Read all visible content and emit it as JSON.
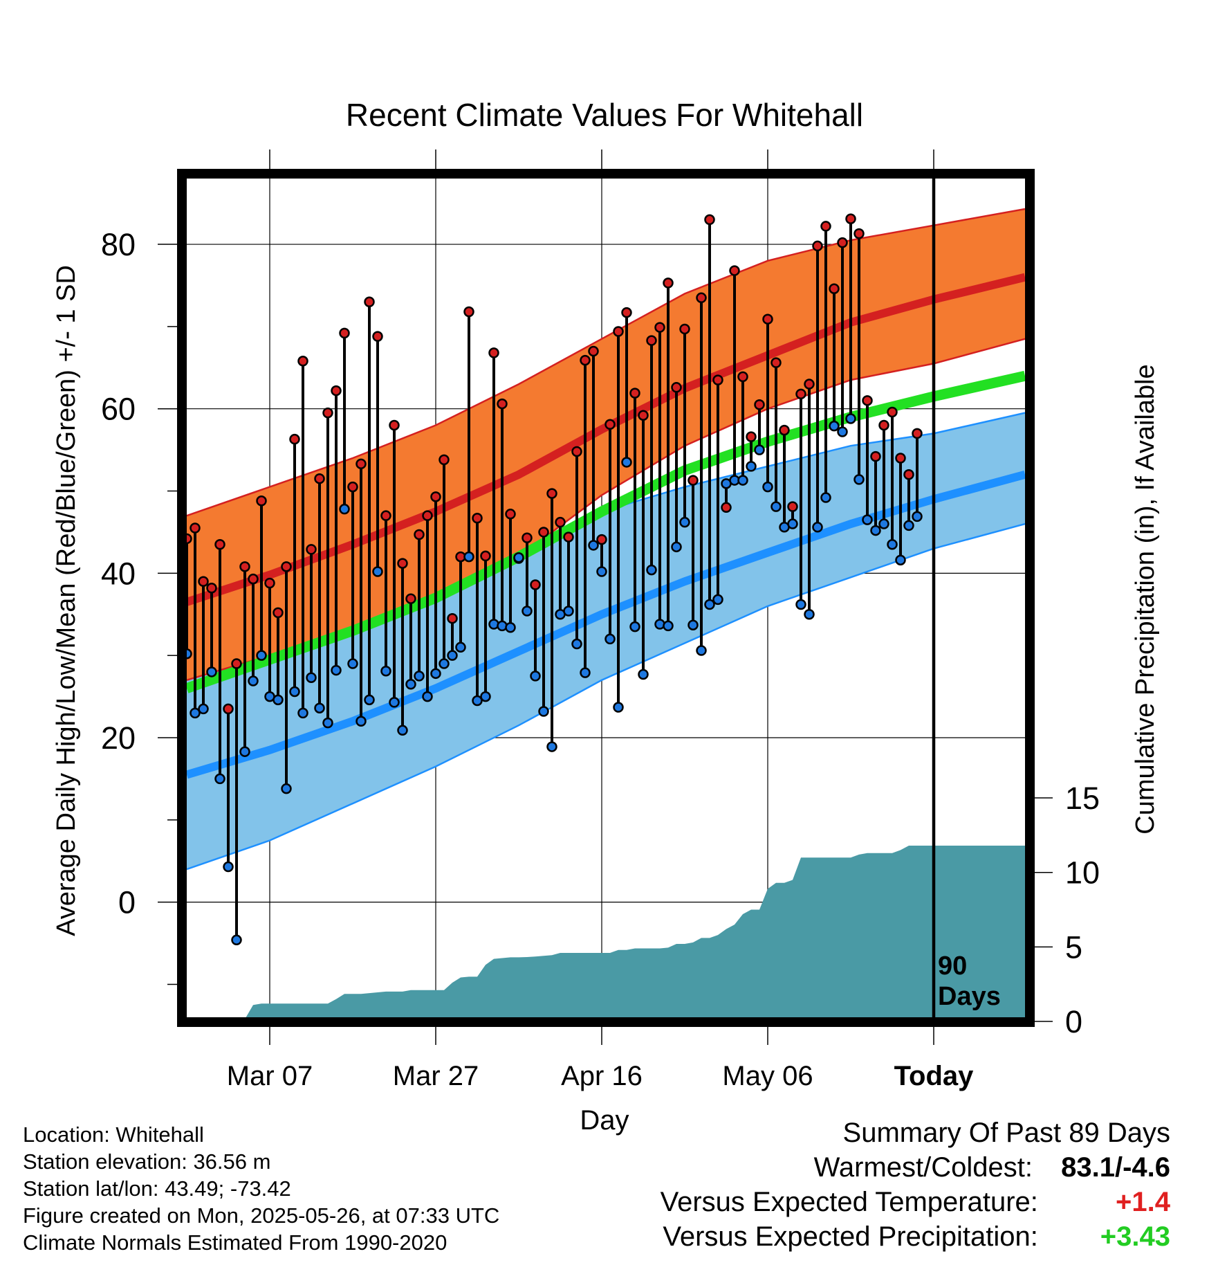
{
  "chart_data": {
    "type": "line",
    "title": "Recent Climate Values For Whitehall",
    "xlabel": "Day",
    "ylabel": "Average Daily High/Low/Mean (Red/Blue/Green) +/- 1 SD",
    "y2label": "Cumulative Precipitation (in), If Available",
    "ylim": [
      -14,
      88
    ],
    "yticks": [
      0,
      20,
      40,
      60,
      80
    ],
    "y2lim": [
      0,
      17
    ],
    "y2ticks": [
      0,
      5,
      10,
      15
    ],
    "x_day_range": [
      1,
      102
    ],
    "x_tick_days": [
      11,
      31,
      51,
      71,
      91
    ],
    "x_tick_labels": [
      "Mar 07",
      "Mar 27",
      "Apr 16",
      "May 06",
      "Today"
    ],
    "today_day": 91,
    "today_label": [
      "90",
      "Days"
    ],
    "grid": true,
    "normals": {
      "x": [
        1,
        11,
        21,
        31,
        41,
        51,
        61,
        71,
        81,
        91,
        102
      ],
      "high_mean": [
        36.5,
        39.8,
        43.5,
        47.5,
        52.0,
        57.5,
        62.5,
        66.5,
        70.5,
        73.3,
        76.0
      ],
      "high_upper": [
        47.0,
        50.5,
        54.0,
        58.0,
        63.0,
        68.5,
        74.0,
        78.0,
        80.5,
        82.3,
        84.3
      ],
      "high_lower": [
        27.0,
        30.0,
        33.5,
        37.5,
        42.0,
        49.5,
        55.5,
        60.0,
        63.5,
        65.5,
        68.5
      ],
      "mean": [
        26.0,
        29.5,
        33.0,
        37.0,
        42.0,
        47.5,
        52.5,
        56.0,
        59.0,
        61.5,
        64.0
      ],
      "low_mean": [
        15.5,
        18.5,
        22.0,
        26.0,
        30.5,
        35.0,
        39.0,
        42.5,
        46.0,
        49.0,
        52.0
      ],
      "low_upper": [
        27.5,
        31.0,
        35.0,
        38.5,
        43.0,
        47.5,
        50.5,
        53.0,
        55.5,
        57.0,
        59.5
      ],
      "low_lower": [
        4.0,
        7.5,
        12.0,
        16.5,
        21.5,
        27.0,
        31.5,
        36.0,
        39.5,
        43.0,
        46.0
      ]
    },
    "series": [
      {
        "name": "High",
        "x": [
          1,
          2,
          3,
          4,
          5,
          6,
          7,
          8,
          9,
          10,
          11,
          12,
          13,
          14,
          15,
          16,
          17,
          18,
          19,
          20,
          21,
          22,
          23,
          24,
          25,
          26,
          27,
          28,
          29,
          30,
          31,
          32,
          33,
          34,
          35,
          36,
          37,
          38,
          39,
          40,
          41,
          42,
          43,
          44,
          45,
          46,
          47,
          48,
          49,
          50,
          51,
          52,
          53,
          54,
          55,
          56,
          57,
          58,
          59,
          60,
          61,
          62,
          63,
          64,
          65,
          66,
          67,
          68,
          69,
          70,
          71,
          72,
          73,
          74,
          75,
          76,
          77,
          78,
          79,
          80,
          81,
          82,
          83,
          84,
          85,
          86,
          87,
          88,
          89
        ],
        "values": [
          44.2,
          45.5,
          39.0,
          38.2,
          43.5,
          23.5,
          29.0,
          40.8,
          39.3,
          48.8,
          38.8,
          35.2,
          40.8,
          56.3,
          65.8,
          42.9,
          51.5,
          59.5,
          62.2,
          69.2,
          50.5,
          53.3,
          73.0,
          68.8,
          47.0,
          58.0,
          41.2,
          36.9,
          44.7,
          47.0,
          49.3,
          53.8,
          34.5,
          42.0,
          71.8,
          46.7,
          42.1,
          66.8,
          60.6,
          47.2,
          41.8,
          44.3,
          38.6,
          45.0,
          49.7,
          46.2,
          44.4,
          54.8,
          65.9,
          67.0,
          44.1,
          58.1,
          69.4,
          71.7,
          61.9,
          59.2,
          68.3,
          69.9,
          75.3,
          62.6,
          69.7,
          51.3,
          73.5,
          83.0,
          63.5,
          48.0,
          76.8,
          63.9,
          56.6,
          60.5,
          70.9,
          65.6,
          57.4,
          48.1,
          61.8,
          63.0,
          79.8,
          82.2,
          74.6,
          80.2,
          83.1,
          81.3,
          61.0,
          54.2,
          58.0,
          59.6,
          54.0,
          52.0,
          57.0
        ]
      },
      {
        "name": "Low",
        "x": [
          1,
          2,
          3,
          4,
          5,
          6,
          7,
          8,
          9,
          10,
          11,
          12,
          13,
          14,
          15,
          16,
          17,
          18,
          19,
          20,
          21,
          22,
          23,
          24,
          25,
          26,
          27,
          28,
          29,
          30,
          31,
          32,
          33,
          34,
          35,
          36,
          37,
          38,
          39,
          40,
          41,
          42,
          43,
          44,
          45,
          46,
          47,
          48,
          49,
          50,
          51,
          52,
          53,
          54,
          55,
          56,
          57,
          58,
          59,
          60,
          61,
          62,
          63,
          64,
          65,
          66,
          67,
          68,
          69,
          70,
          71,
          72,
          73,
          74,
          75,
          76,
          77,
          78,
          79,
          80,
          81,
          82,
          83,
          84,
          85,
          86,
          87,
          88,
          89
        ],
        "values": [
          30.2,
          23.0,
          23.5,
          28.0,
          15.0,
          4.3,
          -4.6,
          18.3,
          26.9,
          30.0,
          25.0,
          24.6,
          13.8,
          25.6,
          23.0,
          27.3,
          23.6,
          21.8,
          28.2,
          47.8,
          29.0,
          22.0,
          24.6,
          40.2,
          28.1,
          24.3,
          20.9,
          26.5,
          27.5,
          25.0,
          27.8,
          29.0,
          30.0,
          31.0,
          42.0,
          24.5,
          25.0,
          33.8,
          33.6,
          33.4,
          41.9,
          35.4,
          27.5,
          23.2,
          18.9,
          35.0,
          35.4,
          31.4,
          27.9,
          43.4,
          40.2,
          32.0,
          23.7,
          53.5,
          33.5,
          27.7,
          40.4,
          33.8,
          33.6,
          43.2,
          46.2,
          33.7,
          30.6,
          36.2,
          36.8,
          50.9,
          51.3,
          51.3,
          53.0,
          55.0,
          50.5,
          48.1,
          45.6,
          46.0,
          36.2,
          35.0,
          45.6,
          49.2,
          57.9,
          57.2,
          58.8,
          51.4,
          46.5,
          45.2,
          46.0,
          43.5,
          41.6,
          45.8,
          46.9
        ]
      }
    ],
    "precip": {
      "x": [
        1,
        7,
        8,
        9,
        10,
        11,
        12,
        13,
        14,
        15,
        16,
        17,
        18,
        19,
        20,
        21,
        22,
        23,
        24,
        25,
        26,
        27,
        28,
        29,
        30,
        31,
        32,
        33,
        34,
        35,
        36,
        37,
        38,
        39,
        40,
        41,
        42,
        43,
        44,
        45,
        46,
        47,
        48,
        49,
        50,
        51,
        52,
        53,
        54,
        55,
        56,
        57,
        58,
        59,
        60,
        61,
        62,
        63,
        64,
        65,
        66,
        67,
        68,
        69,
        70,
        71,
        72,
        73,
        74,
        75,
        76,
        77,
        78,
        79,
        80,
        81,
        82,
        83,
        84,
        85,
        86,
        87,
        88,
        89,
        90,
        91,
        102
      ],
      "values": [
        0,
        0,
        0.15,
        1.1,
        1.2,
        1.2,
        1.2,
        1.2,
        1.2,
        1.2,
        1.2,
        1.2,
        1.2,
        1.5,
        1.85,
        1.85,
        1.85,
        1.9,
        1.95,
        2.0,
        2.0,
        2.0,
        2.1,
        2.1,
        2.1,
        2.1,
        2.1,
        2.6,
        2.95,
        3.0,
        3.0,
        3.8,
        4.2,
        4.25,
        4.3,
        4.3,
        4.32,
        4.35,
        4.4,
        4.45,
        4.6,
        4.6,
        4.6,
        4.6,
        4.6,
        4.6,
        4.6,
        4.8,
        4.8,
        4.9,
        4.9,
        4.9,
        4.9,
        4.95,
        5.2,
        5.2,
        5.3,
        5.6,
        5.6,
        5.8,
        6.2,
        6.5,
        7.2,
        7.5,
        7.5,
        8.9,
        9.3,
        9.3,
        9.5,
        11.0,
        11.0,
        11.0,
        11.0,
        11.0,
        11.0,
        11.0,
        11.2,
        11.3,
        11.3,
        11.3,
        11.3,
        11.5,
        11.8,
        11.8,
        11.8,
        11.8,
        11.8
      ]
    }
  },
  "footer": {
    "location": "Location: Whitehall",
    "elevation": "Station elevation: 36.56 m",
    "latlon": "Station lat/lon: 43.49; -73.42",
    "created": "Figure created on Mon, 2025-05-26, at 07:33 UTC",
    "normals": "Climate Normals Estimated From 1990-2020"
  },
  "summary": {
    "heading": "Summary Of Past 89 Days",
    "warmest_coldest_label": "Warmest/Coldest:",
    "warmest_coldest_value": "83.1/-4.6",
    "temp_label": "Versus Expected Temperature:",
    "temp_value": "+1.4",
    "precip_label": "Versus Expected Precipitation:",
    "precip_value": "+3.43"
  },
  "colors": {
    "high_band": "#f47a30",
    "high_line": "#d42020",
    "low_band": "#82c3ea",
    "low_line": "#1e90ff",
    "mean_line": "#22e022",
    "precip_fill": "#4a9aa5",
    "high_dot": "#d42020",
    "low_dot": "#1e78e0",
    "temp_value": "#e02020",
    "precip_value": "#22cc22"
  }
}
